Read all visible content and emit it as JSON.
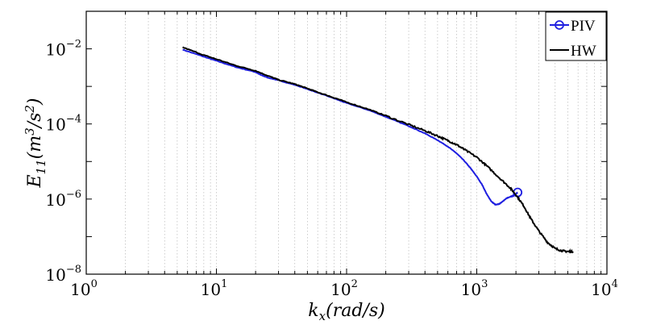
{
  "chart_data": {
    "type": "line",
    "title": "",
    "x_scale": "log",
    "y_scale": "log",
    "xlim": [
      1,
      10000
    ],
    "ylim": [
      1e-08,
      0.1
    ],
    "grid": "x-only dotted",
    "legend_position": "top-right",
    "xlabel": {
      "base": "k",
      "sub": "x",
      "rest": "(rad/s)"
    },
    "ylabel": {
      "base": "E",
      "sub": "11",
      "rest1": "(m",
      "sup1": "3",
      "rest2": "/s",
      "sup2": "2",
      "rest3": ")"
    },
    "x_ticks": [
      {
        "value": 1,
        "base": "10",
        "exp": "0"
      },
      {
        "value": 10,
        "base": "10",
        "exp": "1"
      },
      {
        "value": 100,
        "base": "10",
        "exp": "2"
      },
      {
        "value": 1000,
        "base": "10",
        "exp": "3"
      },
      {
        "value": 10000,
        "base": "10",
        "exp": "4"
      }
    ],
    "y_ticks": [
      {
        "value": 1e-08,
        "base": "10",
        "exp": "−8"
      },
      {
        "value": 1e-06,
        "base": "10",
        "exp": "−6"
      },
      {
        "value": 0.0001,
        "base": "10",
        "exp": "−4"
      },
      {
        "value": 0.01,
        "base": "10",
        "exp": "−2"
      }
    ],
    "series": [
      {
        "name": "PIV",
        "color": "#1f1fe0",
        "marker": "circle-at-end",
        "x": [
          5.5,
          8,
          10,
          14,
          20,
          22,
          25,
          30,
          40,
          50,
          60,
          80,
          100,
          150,
          200,
          300,
          400,
          500,
          600,
          700,
          800,
          900,
          1000,
          1100,
          1200,
          1300,
          1400,
          1500,
          1600,
          1700,
          1800,
          1900,
          2000,
          2060
        ],
        "y": [
          0.0095,
          0.0062,
          0.0048,
          0.0033,
          0.0024,
          0.002,
          0.0017,
          0.00145,
          0.0011,
          0.00085,
          0.00068,
          0.00048,
          0.00036,
          0.00023,
          0.000155,
          8.8e-05,
          5.6e-05,
          3.7e-05,
          2.5e-05,
          1.65e-05,
          1.05e-05,
          6.5e-06,
          4e-06,
          2.4e-06,
          1.3e-06,
          8.5e-07,
          7e-07,
          7.5e-07,
          9e-07,
          1.05e-06,
          1.15e-06,
          1.22e-06,
          1.35e-06,
          1.5e-06
        ]
      },
      {
        "name": "HW",
        "color": "#000000",
        "marker": "none",
        "x": [
          5.5,
          8,
          10,
          14,
          20,
          25,
          30,
          40,
          50,
          60,
          80,
          100,
          150,
          200,
          300,
          400,
          500,
          600,
          700,
          800,
          1000,
          1200,
          1500,
          1800,
          2000,
          2300,
          2600,
          3000,
          3500,
          4000,
          4500,
          5000,
          5500
        ],
        "y": [
          0.011,
          0.0068,
          0.0053,
          0.0036,
          0.0026,
          0.0019,
          0.0015,
          0.00115,
          0.00088,
          0.0007,
          0.0005,
          0.00038,
          0.00024,
          0.000165,
          9.6e-05,
          6.6e-05,
          4.8e-05,
          3.6e-05,
          2.8e-05,
          2.1e-05,
          1.3e-05,
          7.5e-06,
          3.6e-06,
          2e-06,
          1.3e-06,
          6.5e-07,
          3e-07,
          1.4e-07,
          7e-08,
          4.8e-08,
          4.2e-08,
          4e-08,
          4e-08
        ]
      }
    ]
  }
}
